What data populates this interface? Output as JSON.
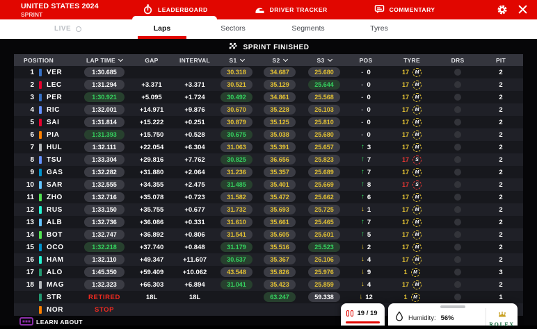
{
  "colors": {
    "brand_red": "#e10600",
    "sector_yellow": "#e3c233",
    "sector_green": "#35d35f",
    "soft_red": "#ec3732",
    "white": "#ffffff"
  },
  "header": {
    "title": "UNITED STATES 2024",
    "subtitle": "SPRINT",
    "tabs": [
      {
        "label": "LEADERBOARD",
        "icon": "stopwatch-icon",
        "active": true
      },
      {
        "label": "DRIVER TRACKER",
        "icon": "helmet-icon",
        "active": false
      },
      {
        "label": "COMMENTARY",
        "icon": "speech-bubble-icon",
        "active": false
      }
    ]
  },
  "subnav": {
    "live_label": "LIVE",
    "tabs": [
      {
        "label": "Laps",
        "active": true
      },
      {
        "label": "Sectors",
        "active": false
      },
      {
        "label": "Segments",
        "active": false
      },
      {
        "label": "Tyres",
        "active": false
      }
    ]
  },
  "banner": {
    "status": "SPRINT FINISHED"
  },
  "table": {
    "columns": [
      {
        "label": "POSITION",
        "sortable": false
      },
      {
        "label": "LAP TIME",
        "sortable": true
      },
      {
        "label": "GAP",
        "sortable": false
      },
      {
        "label": "INTERVAL",
        "sortable": false
      },
      {
        "label": "S1",
        "sortable": true
      },
      {
        "label": "S2",
        "sortable": true
      },
      {
        "label": "S3",
        "sortable": true
      },
      {
        "label": "POS",
        "sortable": false
      },
      {
        "label": "TYRE",
        "sortable": false
      },
      {
        "label": "DRS",
        "sortable": false
      },
      {
        "label": "PIT",
        "sortable": false
      }
    ],
    "rows": [
      {
        "position": "1",
        "team_color": "#3671C6",
        "driver": "VER",
        "lap_time": {
          "text": "1:30.685",
          "color": "white"
        },
        "gap": "",
        "interval": {
          "text": "",
          "color": "white"
        },
        "s1": {
          "text": "30.318",
          "color": "yellow"
        },
        "s2": {
          "text": "34.687",
          "color": "yellow"
        },
        "s3": {
          "text": "25.680",
          "color": "yellow"
        },
        "pos_change": {
          "dir": "none",
          "value": "0"
        },
        "tyre": {
          "laps": "17",
          "compound": "M",
          "state": "medium"
        },
        "drs": false,
        "pit": "2"
      },
      {
        "position": "2",
        "team_color": "#E8002D",
        "driver": "LEC",
        "lap_time": {
          "text": "1:31.294",
          "color": "white"
        },
        "gap": "+3.371",
        "interval": {
          "text": "+3.371",
          "color": "white"
        },
        "s1": {
          "text": "30.521",
          "color": "yellow"
        },
        "s2": {
          "text": "35.129",
          "color": "yellow"
        },
        "s3": {
          "text": "25.644",
          "color": "green"
        },
        "pos_change": {
          "dir": "none",
          "value": "0"
        },
        "tyre": {
          "laps": "17",
          "compound": "M",
          "state": "medium"
        },
        "drs": false,
        "pit": "2"
      },
      {
        "position": "3",
        "team_color": "#3671C6",
        "driver": "PER",
        "lap_time": {
          "text": "1:30.921",
          "color": "green"
        },
        "gap": "+5.095",
        "interval": {
          "text": "+1.724",
          "color": "green"
        },
        "s1": {
          "text": "30.492",
          "color": "green"
        },
        "s2": {
          "text": "34.861",
          "color": "yellow"
        },
        "s3": {
          "text": "25.568",
          "color": "yellow"
        },
        "pos_change": {
          "dir": "none",
          "value": "0"
        },
        "tyre": {
          "laps": "17",
          "compound": "M",
          "state": "medium"
        },
        "drs": false,
        "pit": "2"
      },
      {
        "position": "4",
        "team_color": "#6692FF",
        "driver": "RIC",
        "lap_time": {
          "text": "1:32.001",
          "color": "white"
        },
        "gap": "+14.971",
        "interval": {
          "text": "+9.876",
          "color": "white"
        },
        "s1": {
          "text": "30.670",
          "color": "yellow"
        },
        "s2": {
          "text": "35.228",
          "color": "yellow"
        },
        "s3": {
          "text": "26.103",
          "color": "yellow"
        },
        "pos_change": {
          "dir": "none",
          "value": "0"
        },
        "tyre": {
          "laps": "17",
          "compound": "M",
          "state": "medium"
        },
        "drs": false,
        "pit": "2"
      },
      {
        "position": "5",
        "team_color": "#E8002D",
        "driver": "SAI",
        "lap_time": {
          "text": "1:31.814",
          "color": "white"
        },
        "gap": "+15.222",
        "interval": {
          "text": "+0.251",
          "color": "green"
        },
        "s1": {
          "text": "30.879",
          "color": "yellow"
        },
        "s2": {
          "text": "35.125",
          "color": "yellow"
        },
        "s3": {
          "text": "25.810",
          "color": "yellow"
        },
        "pos_change": {
          "dir": "none",
          "value": "0"
        },
        "tyre": {
          "laps": "17",
          "compound": "M",
          "state": "medium"
        },
        "drs": false,
        "pit": "2"
      },
      {
        "position": "6",
        "team_color": "#FF8000",
        "driver": "PIA",
        "lap_time": {
          "text": "1:31.393",
          "color": "green"
        },
        "gap": "+15.750",
        "interval": {
          "text": "+0.528",
          "color": "green"
        },
        "s1": {
          "text": "30.675",
          "color": "green"
        },
        "s2": {
          "text": "35.038",
          "color": "yellow"
        },
        "s3": {
          "text": "25.680",
          "color": "yellow"
        },
        "pos_change": {
          "dir": "none",
          "value": "0"
        },
        "tyre": {
          "laps": "17",
          "compound": "M",
          "state": "medium"
        },
        "drs": false,
        "pit": "2"
      },
      {
        "position": "7",
        "team_color": "#B6BABD",
        "driver": "HUL",
        "lap_time": {
          "text": "1:32.111",
          "color": "white"
        },
        "gap": "+22.054",
        "interval": {
          "text": "+6.304",
          "color": "white"
        },
        "s1": {
          "text": "31.063",
          "color": "yellow"
        },
        "s2": {
          "text": "35.391",
          "color": "yellow"
        },
        "s3": {
          "text": "25.657",
          "color": "yellow"
        },
        "pos_change": {
          "dir": "up",
          "value": "3"
        },
        "tyre": {
          "laps": "17",
          "compound": "M",
          "state": "medium"
        },
        "drs": false,
        "pit": "2"
      },
      {
        "position": "8",
        "team_color": "#6692FF",
        "driver": "TSU",
        "lap_time": {
          "text": "1:33.304",
          "color": "white"
        },
        "gap": "+29.816",
        "interval": {
          "text": "+7.762",
          "color": "white"
        },
        "s1": {
          "text": "30.825",
          "color": "green"
        },
        "s2": {
          "text": "36.656",
          "color": "yellow"
        },
        "s3": {
          "text": "25.823",
          "color": "yellow"
        },
        "pos_change": {
          "dir": "up",
          "value": "7"
        },
        "tyre": {
          "laps": "17",
          "compound": "S",
          "state": "soft"
        },
        "drs": false,
        "pit": "2"
      },
      {
        "position": "9",
        "team_color": "#0093CC",
        "driver": "GAS",
        "lap_time": {
          "text": "1:32.282",
          "color": "white"
        },
        "gap": "+31.880",
        "interval": {
          "text": "+2.064",
          "color": "green"
        },
        "s1": {
          "text": "31.236",
          "color": "yellow"
        },
        "s2": {
          "text": "35.357",
          "color": "yellow"
        },
        "s3": {
          "text": "25.689",
          "color": "yellow"
        },
        "pos_change": {
          "dir": "up",
          "value": "7"
        },
        "tyre": {
          "laps": "17",
          "compound": "M",
          "state": "medium"
        },
        "drs": false,
        "pit": "2"
      },
      {
        "position": "10",
        "team_color": "#64C4FF",
        "driver": "SAR",
        "lap_time": {
          "text": "1:32.555",
          "color": "white"
        },
        "gap": "+34.355",
        "interval": {
          "text": "+2.475",
          "color": "white"
        },
        "s1": {
          "text": "31.485",
          "color": "green"
        },
        "s2": {
          "text": "35.401",
          "color": "yellow"
        },
        "s3": {
          "text": "25.669",
          "color": "yellow"
        },
        "pos_change": {
          "dir": "up",
          "value": "8"
        },
        "tyre": {
          "laps": "17",
          "compound": "S",
          "state": "soft"
        },
        "drs": false,
        "pit": "2"
      },
      {
        "position": "11",
        "team_color": "#52E252",
        "driver": "ZHO",
        "lap_time": {
          "text": "1:32.716",
          "color": "white"
        },
        "gap": "+35.078",
        "interval": {
          "text": "+0.723",
          "color": "white"
        },
        "s1": {
          "text": "31.582",
          "color": "yellow"
        },
        "s2": {
          "text": "35.472",
          "color": "yellow"
        },
        "s3": {
          "text": "25.662",
          "color": "yellow"
        },
        "pos_change": {
          "dir": "up",
          "value": "6"
        },
        "tyre": {
          "laps": "17",
          "compound": "M",
          "state": "medium"
        },
        "drs": false,
        "pit": "2"
      },
      {
        "position": "12",
        "team_color": "#27F4D2",
        "driver": "RUS",
        "lap_time": {
          "text": "1:33.150",
          "color": "white"
        },
        "gap": "+35.755",
        "interval": {
          "text": "+0.677",
          "color": "white"
        },
        "s1": {
          "text": "31.732",
          "color": "yellow"
        },
        "s2": {
          "text": "35.693",
          "color": "yellow"
        },
        "s3": {
          "text": "25.725",
          "color": "yellow"
        },
        "pos_change": {
          "dir": "down",
          "value": "1"
        },
        "tyre": {
          "laps": "17",
          "compound": "M",
          "state": "medium"
        },
        "drs": false,
        "pit": "2"
      },
      {
        "position": "13",
        "team_color": "#64C4FF",
        "driver": "ALB",
        "lap_time": {
          "text": "1:32.736",
          "color": "white"
        },
        "gap": "+36.086",
        "interval": {
          "text": "+0.331",
          "color": "green"
        },
        "s1": {
          "text": "31.610",
          "color": "yellow"
        },
        "s2": {
          "text": "35.661",
          "color": "yellow"
        },
        "s3": {
          "text": "25.465",
          "color": "yellow"
        },
        "pos_change": {
          "dir": "up",
          "value": "7"
        },
        "tyre": {
          "laps": "17",
          "compound": "M",
          "state": "medium"
        },
        "drs": false,
        "pit": "2"
      },
      {
        "position": "14",
        "team_color": "#52E252",
        "driver": "BOT",
        "lap_time": {
          "text": "1:32.747",
          "color": "white"
        },
        "gap": "+36.892",
        "interval": {
          "text": "+0.806",
          "color": "white"
        },
        "s1": {
          "text": "31.541",
          "color": "yellow"
        },
        "s2": {
          "text": "35.605",
          "color": "yellow"
        },
        "s3": {
          "text": "25.601",
          "color": "yellow"
        },
        "pos_change": {
          "dir": "up",
          "value": "5"
        },
        "tyre": {
          "laps": "17",
          "compound": "M",
          "state": "medium"
        },
        "drs": false,
        "pit": "2"
      },
      {
        "position": "15",
        "team_color": "#0093CC",
        "driver": "OCO",
        "lap_time": {
          "text": "1:32.218",
          "color": "green"
        },
        "gap": "+37.740",
        "interval": {
          "text": "+0.848",
          "color": "green"
        },
        "s1": {
          "text": "31.179",
          "color": "green"
        },
        "s2": {
          "text": "35.516",
          "color": "yellow"
        },
        "s3": {
          "text": "25.523",
          "color": "green"
        },
        "pos_change": {
          "dir": "down",
          "value": "2"
        },
        "tyre": {
          "laps": "17",
          "compound": "M",
          "state": "medium"
        },
        "drs": false,
        "pit": "2"
      },
      {
        "position": "16",
        "team_color": "#27F4D2",
        "driver": "HAM",
        "lap_time": {
          "text": "1:32.110",
          "color": "white"
        },
        "gap": "+49.347",
        "interval": {
          "text": "+11.607",
          "color": "green"
        },
        "s1": {
          "text": "30.637",
          "color": "green"
        },
        "s2": {
          "text": "35.367",
          "color": "yellow"
        },
        "s3": {
          "text": "26.106",
          "color": "yellow"
        },
        "pos_change": {
          "dir": "down",
          "value": "4"
        },
        "tyre": {
          "laps": "17",
          "compound": "M",
          "state": "medium"
        },
        "drs": false,
        "pit": "2"
      },
      {
        "position": "17",
        "team_color": "#229971",
        "driver": "ALO",
        "lap_time": {
          "text": "1:45.350",
          "color": "white"
        },
        "gap": "+59.409",
        "interval": {
          "text": "+10.062",
          "color": "white"
        },
        "s1": {
          "text": "43.548",
          "color": "yellow"
        },
        "s2": {
          "text": "35.826",
          "color": "yellow"
        },
        "s3": {
          "text": "25.976",
          "color": "yellow"
        },
        "pos_change": {
          "dir": "down",
          "value": "9"
        },
        "tyre": {
          "laps": "1",
          "compound": "M",
          "state": "medium"
        },
        "drs": false,
        "pit": "3"
      },
      {
        "position": "18",
        "team_color": "#B6BABD",
        "driver": "MAG",
        "lap_time": {
          "text": "1:32.323",
          "color": "white"
        },
        "gap": "+66.303",
        "interval": {
          "text": "+6.894",
          "color": "green"
        },
        "s1": {
          "text": "31.041",
          "color": "green"
        },
        "s2": {
          "text": "35.423",
          "color": "yellow"
        },
        "s3": {
          "text": "25.859",
          "color": "yellow"
        },
        "pos_change": {
          "dir": "down",
          "value": "4"
        },
        "tyre": {
          "laps": "17",
          "compound": "M",
          "state": "medium"
        },
        "drs": false,
        "pit": "2"
      },
      {
        "position": "",
        "team_color": "#229971",
        "driver": "STR",
        "status": "RETIRED",
        "gap": "18L",
        "interval": {
          "text": "18L",
          "color": "white"
        },
        "s1": null,
        "s2": {
          "text": "63.247",
          "color": "green"
        },
        "s3": {
          "text": "59.338",
          "color": "white"
        },
        "pos_change": {
          "dir": "down",
          "value": "12"
        },
        "tyre": {
          "laps": "1",
          "compound": "M",
          "state": "medium"
        },
        "drs": false,
        "pit": "1"
      },
      {
        "position": "",
        "team_color": "#FF8000",
        "driver": "NOR",
        "status": "STOP",
        "gap": "",
        "interval": {
          "text": "",
          "color": "white"
        },
        "s1": null,
        "s2": null,
        "s3": null,
        "pos_change": {
          "dir": "down",
          "value": ""
        },
        "tyre": {
          "laps": "",
          "compound": "M",
          "state": "medium"
        },
        "drs": false,
        "pit": ""
      }
    ]
  },
  "footer": {
    "learn_about": "LEARN ABOUT",
    "lap_counter": {
      "current": "19",
      "separator": "/",
      "total": "19"
    },
    "humidity": {
      "label": "Humidity:",
      "value": "56%"
    },
    "sponsor": "ROLEX"
  }
}
